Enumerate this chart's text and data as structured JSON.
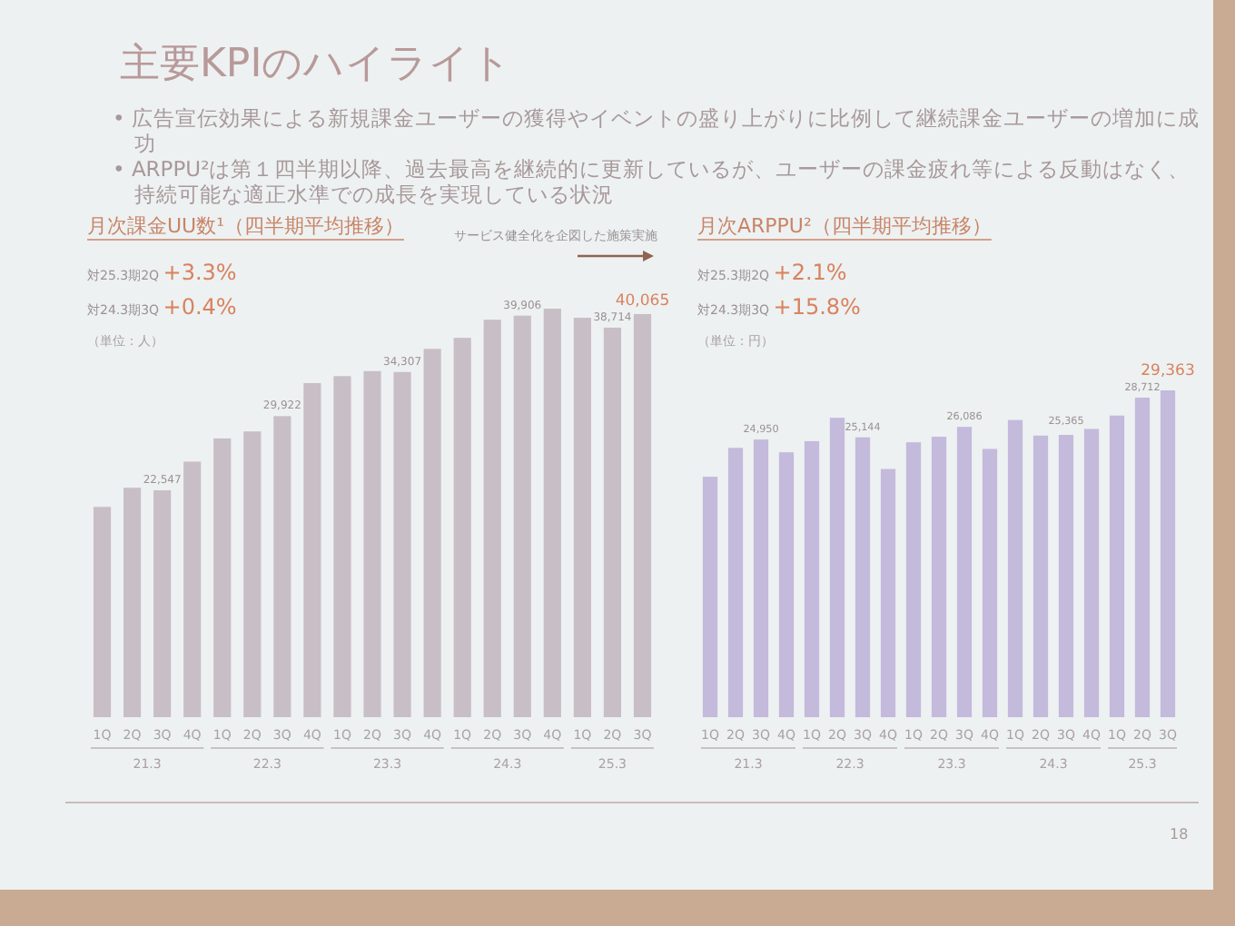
{
  "chart_data": [
    {
      "type": "other",
      "title": "主要KPIのハイライト",
      "annotations": [
        "• 広告宣伝効果による新規課金ユーザーの獲得やイベントの盛り上がりに比例して継続課金ユーザーの増加に成功",
        "• ARPPU²は第１四半期以降、過去最高を継続的に更新しているが、ユーザーの課金疲れ等による反動はなく、持続可能な適正水準での成長を実現している状況",
        "18"
      ]
    },
    {
      "type": "bar",
      "title": "月次課金UU数¹（四半期平均推移）",
      "ylabel": "（単位：人）",
      "categories": [
        "1Q",
        "2Q",
        "3Q",
        "4Q",
        "1Q",
        "2Q",
        "3Q",
        "4Q",
        "1Q",
        "2Q",
        "3Q",
        "4Q",
        "1Q",
        "2Q",
        "3Q",
        "4Q",
        "1Q",
        "2Q",
        "3Q"
      ],
      "values": [
        20900,
        22800,
        22547,
        25400,
        27700,
        28400,
        29922,
        33200,
        33900,
        34400,
        34307,
        36600,
        37700,
        39500,
        39906,
        40600,
        39700,
        38714,
        40065
      ],
      "color": "#c8bec6",
      "value_labels": [
        null,
        null,
        "22,547",
        null,
        null,
        null,
        "29,922",
        null,
        null,
        null,
        "34,307",
        null,
        null,
        null,
        "39,906",
        null,
        null,
        "38,714",
        "**40,065**"
      ],
      "annotations": [
        "対25.3期2Q **+3.3%**",
        "対24.3期3Q **+0.4%**",
        "サービス健全化を企図した施策実施",
        "21.3",
        "22.3",
        "23.3",
        "24.3",
        "25.3"
      ]
    },
    {
      "type": "bar",
      "title": "月次ARPPU²（四半期平均推移）",
      "ylabel": "（単位：円）",
      "categories": [
        "1Q",
        "2Q",
        "3Q",
        "4Q",
        "1Q",
        "2Q",
        "3Q",
        "4Q",
        "1Q",
        "2Q",
        "3Q",
        "4Q",
        "1Q",
        "2Q",
        "3Q",
        "4Q",
        "1Q",
        "2Q",
        "3Q"
      ],
      "values": [
        21600,
        24200,
        24950,
        23800,
        24800,
        26900,
        25144,
        22300,
        24700,
        25200,
        26086,
        24100,
        26700,
        25300,
        25365,
        25900,
        27100,
        28712,
        29363
      ],
      "color": "#c4badc",
      "value_labels": [
        null,
        null,
        "24,950",
        null,
        null,
        null,
        "25,144",
        null,
        null,
        null,
        "26,086",
        null,
        null,
        null,
        "25,365",
        null,
        null,
        "28,712",
        "**29,363**"
      ],
      "annotations": [
        "対25.3期2Q **+2.1%**",
        "対24.3期3Q **+15.8%**",
        "21.3",
        "22.3",
        "23.3",
        "24.3",
        "25.3"
      ]
    }
  ]
}
